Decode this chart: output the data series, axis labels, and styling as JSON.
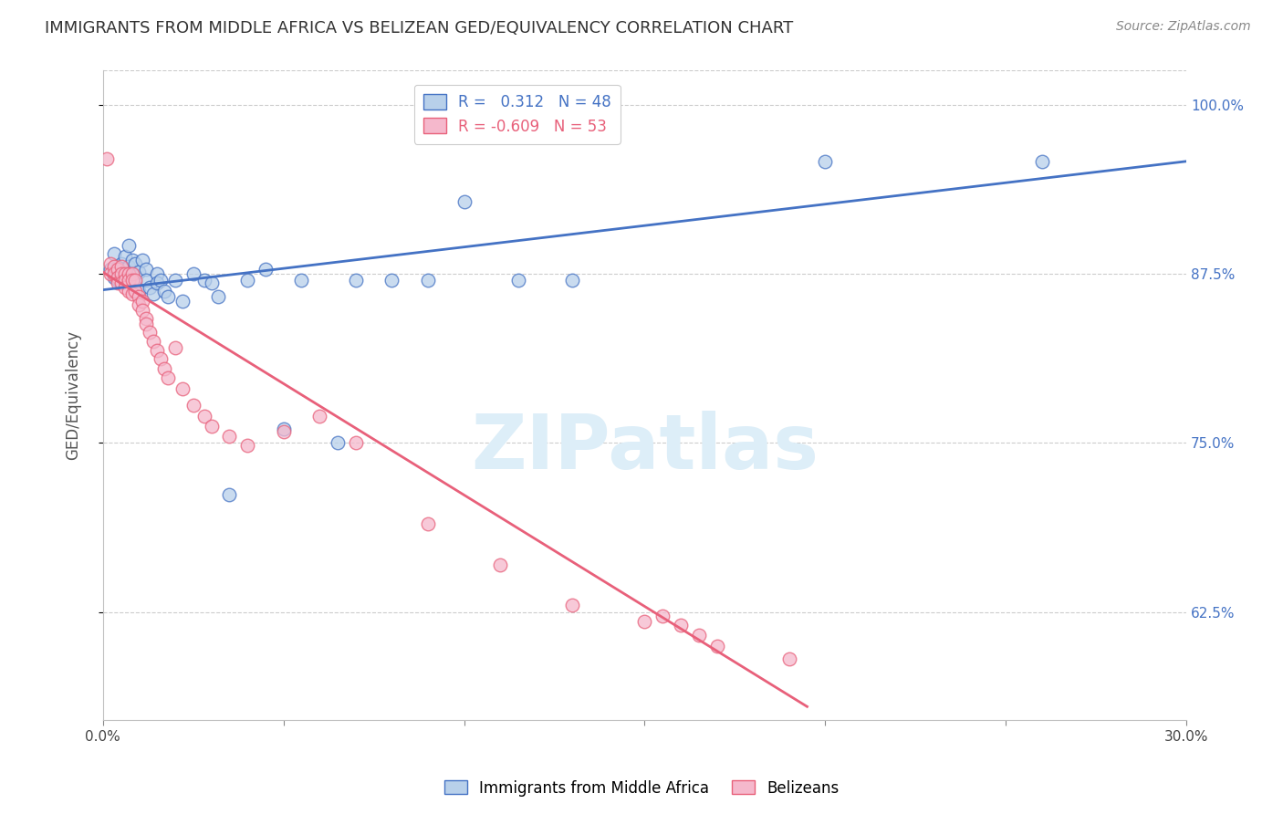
{
  "title": "IMMIGRANTS FROM MIDDLE AFRICA VS BELIZEAN GED/EQUIVALENCY CORRELATION CHART",
  "source": "Source: ZipAtlas.com",
  "ylabel": "GED/Equivalency",
  "xlim": [
    0.0,
    0.3
  ],
  "ylim": [
    0.545,
    1.025
  ],
  "yticks": [
    0.625,
    0.75,
    0.875,
    1.0
  ],
  "ytick_labels": [
    "62.5%",
    "75.0%",
    "87.5%",
    "100.0%"
  ],
  "xticks": [
    0.0,
    0.05,
    0.1,
    0.15,
    0.2,
    0.25,
    0.3
  ],
  "xtick_labels": [
    "0.0%",
    "",
    "",
    "",
    "",
    "",
    "30.0%"
  ],
  "blue_R": 0.312,
  "blue_N": 48,
  "pink_R": -0.609,
  "pink_N": 53,
  "blue_color": "#b8d0ea",
  "pink_color": "#f5b8cc",
  "blue_line_color": "#4472c4",
  "pink_line_color": "#e8607a",
  "legend_label_blue": "Immigrants from Middle Africa",
  "legend_label_pink": "Belizeans",
  "watermark": "ZIPatlas",
  "blue_scatter_x": [
    0.002,
    0.003,
    0.003,
    0.004,
    0.004,
    0.005,
    0.005,
    0.006,
    0.006,
    0.007,
    0.007,
    0.007,
    0.008,
    0.008,
    0.009,
    0.009,
    0.01,
    0.01,
    0.011,
    0.012,
    0.012,
    0.013,
    0.014,
    0.015,
    0.015,
    0.016,
    0.017,
    0.018,
    0.02,
    0.022,
    0.025,
    0.028,
    0.03,
    0.032,
    0.035,
    0.04,
    0.045,
    0.05,
    0.055,
    0.065,
    0.07,
    0.08,
    0.09,
    0.1,
    0.115,
    0.13,
    0.2,
    0.26
  ],
  "blue_scatter_y": [
    0.878,
    0.89,
    0.872,
    0.88,
    0.87,
    0.882,
    0.875,
    0.888,
    0.874,
    0.896,
    0.88,
    0.87,
    0.885,
    0.875,
    0.882,
    0.868,
    0.876,
    0.862,
    0.885,
    0.878,
    0.87,
    0.865,
    0.86,
    0.875,
    0.868,
    0.87,
    0.862,
    0.858,
    0.87,
    0.855,
    0.875,
    0.87,
    0.868,
    0.858,
    0.712,
    0.87,
    0.878,
    0.76,
    0.87,
    0.75,
    0.87,
    0.87,
    0.87,
    0.928,
    0.87,
    0.87,
    0.958,
    0.958
  ],
  "pink_scatter_x": [
    0.001,
    0.002,
    0.002,
    0.003,
    0.003,
    0.004,
    0.004,
    0.004,
    0.005,
    0.005,
    0.005,
    0.006,
    0.006,
    0.006,
    0.007,
    0.007,
    0.007,
    0.008,
    0.008,
    0.008,
    0.009,
    0.009,
    0.01,
    0.01,
    0.011,
    0.011,
    0.012,
    0.012,
    0.013,
    0.014,
    0.015,
    0.016,
    0.017,
    0.018,
    0.02,
    0.022,
    0.025,
    0.028,
    0.03,
    0.035,
    0.04,
    0.05,
    0.06,
    0.07,
    0.09,
    0.11,
    0.13,
    0.15,
    0.17,
    0.19,
    0.155,
    0.16,
    0.165
  ],
  "pink_scatter_y": [
    0.96,
    0.882,
    0.875,
    0.88,
    0.875,
    0.878,
    0.872,
    0.868,
    0.88,
    0.875,
    0.868,
    0.875,
    0.87,
    0.865,
    0.875,
    0.87,
    0.862,
    0.875,
    0.87,
    0.86,
    0.87,
    0.862,
    0.858,
    0.852,
    0.855,
    0.848,
    0.842,
    0.838,
    0.832,
    0.825,
    0.818,
    0.812,
    0.805,
    0.798,
    0.82,
    0.79,
    0.778,
    0.77,
    0.762,
    0.755,
    0.748,
    0.758,
    0.77,
    0.75,
    0.69,
    0.66,
    0.63,
    0.618,
    0.6,
    0.59,
    0.622,
    0.615,
    0.608
  ],
  "blue_trend_x": [
    0.0,
    0.3
  ],
  "blue_trend_y": [
    0.863,
    0.958
  ],
  "pink_trend_x": [
    0.0,
    0.195
  ],
  "pink_trend_y": [
    0.876,
    0.555
  ],
  "grid_color": "#cccccc",
  "axis_color": "#c0c0c0",
  "background_color": "#ffffff",
  "title_fontsize": 13,
  "ylabel_fontsize": 12,
  "tick_fontsize": 11,
  "legend_fontsize": 12,
  "watermark_fontsize": 60,
  "watermark_color": "#ddeef8",
  "right_tick_color": "#4472c4"
}
